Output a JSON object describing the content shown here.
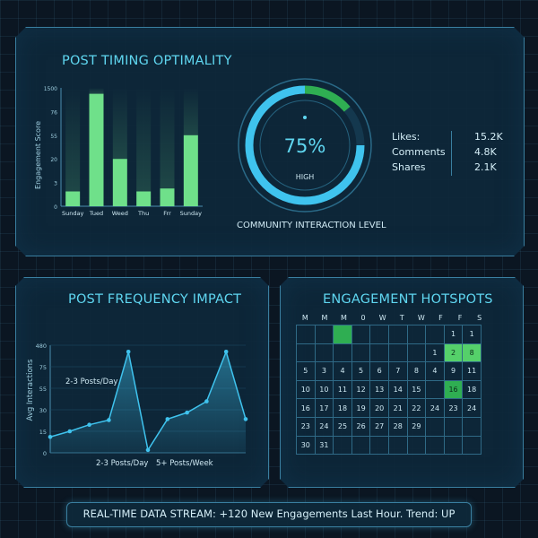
{
  "timing": {
    "title": "POST TIMING OPTIMALITY",
    "ylabel": "Engagement Score",
    "yticks": [
      "1500",
      "76",
      "55",
      "20",
      "3",
      "0"
    ],
    "chart_data": {
      "type": "bar",
      "categories": [
        "Sunday",
        "Tued",
        "Weed",
        "Thu",
        "Frr",
        "Sunday"
      ],
      "values": [
        2.5,
        19,
        8,
        2.5,
        3,
        12
      ],
      "ylabel": "Engagement Score"
    }
  },
  "gauge": {
    "value_label": "75%",
    "value": 75,
    "level_label": "HIGH",
    "caption": "COMMUNITY INTERACTION LEVEL"
  },
  "metrics": [
    {
      "label": "Likes:",
      "value": "15.2K"
    },
    {
      "label": "Comments",
      "value": "4.8K"
    },
    {
      "label": "Shares",
      "value": "2.1K"
    }
  ],
  "frequency": {
    "title": "POST FREQUENCY IMPACT",
    "ylabel": "Avg Interactions",
    "yticks": [
      "480",
      "75",
      "55",
      "30",
      "15",
      "0"
    ],
    "annotation": "2-3 Posts/Day",
    "xlabels": [
      "2-3 Posts/Day",
      "5+ Posts/Week"
    ],
    "chart_data": {
      "type": "area",
      "x": [
        1,
        2,
        3,
        4,
        5,
        6,
        7,
        8,
        9,
        10,
        11
      ],
      "values": [
        17,
        23,
        30,
        35,
        108,
        3,
        36,
        43,
        55,
        108,
        36
      ],
      "ylabel": "Avg Interactions"
    }
  },
  "hotspots": {
    "title": "ENGAGEMENT HOTSPOTS",
    "days": [
      "M",
      "M",
      "M",
      "0",
      "W",
      "T",
      "W",
      "F",
      "F",
      "S"
    ],
    "rows": [
      [
        "",
        "",
        "",
        "",
        "",
        "",
        "",
        "",
        "1",
        "1"
      ],
      [
        "",
        "",
        "",
        "",
        "",
        "",
        "",
        "1",
        "2",
        "8"
      ],
      [
        "5",
        "3",
        "4",
        "5",
        "6",
        "7",
        "8",
        "4",
        "9",
        "11"
      ],
      [
        "10",
        "10",
        "11",
        "12",
        "13",
        "14",
        "15",
        "",
        "16",
        "18"
      ],
      [
        "16",
        "17",
        "18",
        "19",
        "20",
        "21",
        "22",
        "24",
        "23",
        "24"
      ],
      [
        "23",
        "24",
        "25",
        "26",
        "27",
        "28",
        "29",
        "",
        "",
        ""
      ],
      [
        "30",
        "31",
        "",
        "",
        "",
        "",
        "",
        "",
        "",
        ""
      ]
    ],
    "hot_cells": [
      [
        0,
        2
      ],
      [
        3,
        8
      ]
    ],
    "warm_cells": [
      [
        1,
        9
      ],
      [
        1,
        8
      ]
    ]
  },
  "stream": {
    "text": "REAL-TIME DATA STREAM: +120 New Engagements Last Hour. Trend: UP"
  },
  "colors": {
    "accent": "#5fd6f0",
    "bar": "#6fe08a",
    "gauge_blue": "#3fc3ee",
    "gauge_green": "#2fae52",
    "panel_border": "#3a7fa0"
  }
}
